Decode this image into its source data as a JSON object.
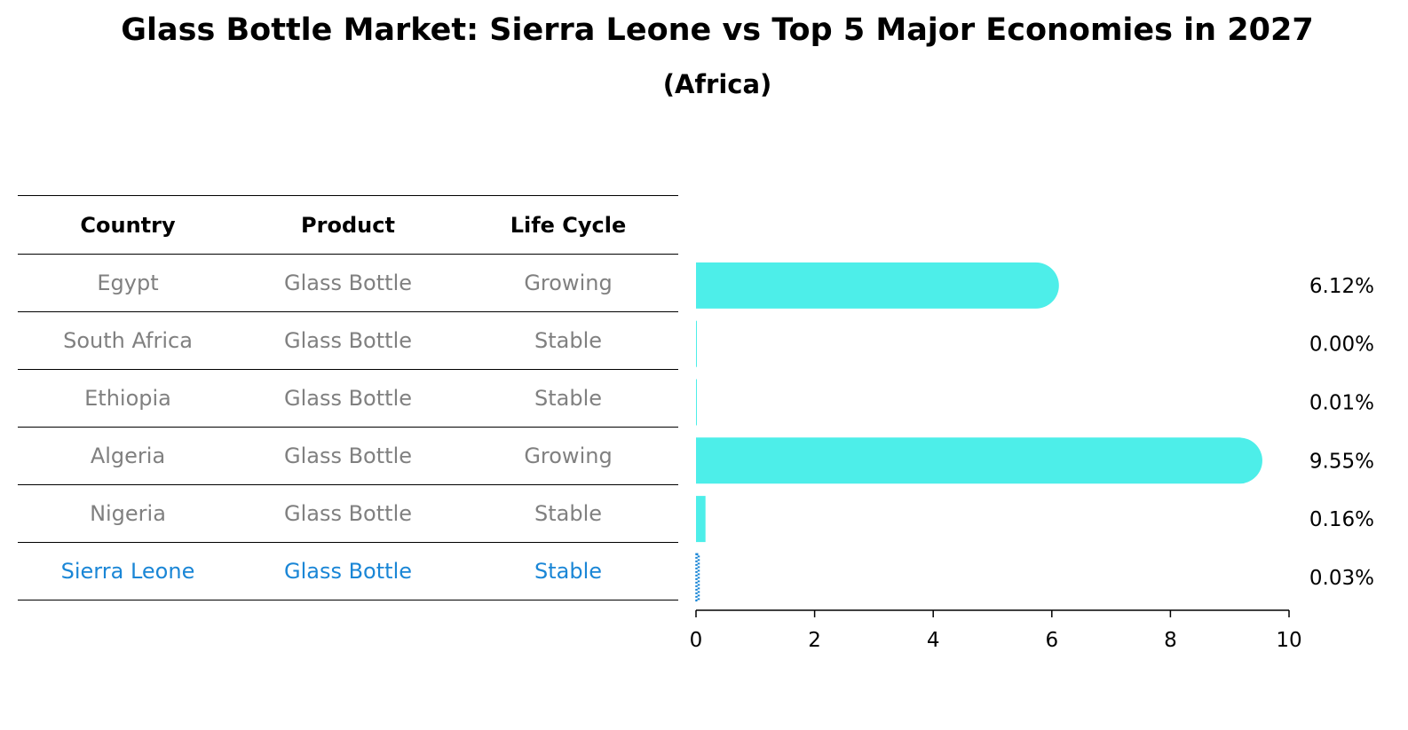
{
  "title": "Glass Bottle Market: Sierra Leone vs Top 5 Major Economies in 2027",
  "subtitle": "(Africa)",
  "colors": {
    "bar": "#4deee9",
    "highlight": "#1a86d6",
    "muted_text": "#808080",
    "text": "#000000"
  },
  "table": {
    "headers": [
      "Country",
      "Product",
      "Life Cycle"
    ],
    "rows": [
      {
        "country": "Egypt",
        "product": "Glass Bottle",
        "life_cycle": "Growing"
      },
      {
        "country": "South Africa",
        "product": "Glass Bottle",
        "life_cycle": "Stable"
      },
      {
        "country": "Ethiopia",
        "product": "Glass Bottle",
        "life_cycle": "Stable"
      },
      {
        "country": "Algeria",
        "product": "Glass Bottle",
        "life_cycle": "Growing"
      },
      {
        "country": "Nigeria",
        "product": "Glass Bottle",
        "life_cycle": "Stable"
      },
      {
        "country": "Sierra Leone",
        "product": "Glass Bottle",
        "life_cycle": "Stable"
      }
    ]
  },
  "chart_data": {
    "type": "bar",
    "orientation": "horizontal",
    "categories": [
      "Egypt",
      "South Africa",
      "Ethiopia",
      "Algeria",
      "Nigeria",
      "Sierra Leone"
    ],
    "values": [
      6.12,
      0.0,
      0.01,
      9.55,
      0.16,
      0.03
    ],
    "value_labels": [
      "6.12%",
      "0.00%",
      "0.01%",
      "9.55%",
      "0.16%",
      "0.03%"
    ],
    "highlight_category": "Sierra Leone",
    "xlim": [
      0,
      10
    ],
    "xticks": [
      0,
      2,
      4,
      6,
      8,
      10
    ],
    "xlabel": "",
    "ylabel": "",
    "grid": false
  }
}
